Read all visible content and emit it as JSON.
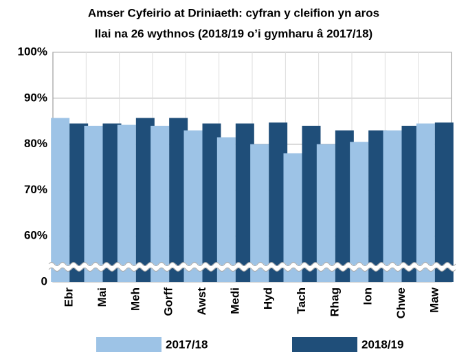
{
  "chart_data": {
    "type": "bar",
    "title": [
      "Amser Cyfeirio at Driniaeth: cyfran y cleifion yn aros",
      "llai na 26 wythnos (2018/19 o’i gymharu â 2017/18)"
    ],
    "categories": [
      "Ebr",
      "Mai",
      "Meh",
      "Gorff",
      "Awst",
      "Medi",
      "Hyd",
      "Tach",
      "Rhag",
      "Ion",
      "Chwe",
      "Maw"
    ],
    "series": [
      {
        "name": "2017/18",
        "color": "#9dc3e6",
        "values": [
          85.7,
          84,
          84.2,
          84,
          83,
          81.5,
          80,
          78,
          80,
          80.5,
          83,
          84.5
        ]
      },
      {
        "name": "2018/19",
        "color": "#1f4e79",
        "values": [
          84.5,
          84.5,
          85.7,
          85.7,
          84.5,
          84.5,
          84.7,
          84,
          83,
          83,
          84,
          84.7
        ]
      }
    ],
    "ylim": [
      0,
      100
    ],
    "yticks": [
      0,
      {
        "value": 60,
        "label": "60%"
      },
      {
        "value": 70,
        "label": "70%"
      },
      {
        "value": 80,
        "label": "80%"
      },
      {
        "value": 90,
        "label": "90%"
      },
      {
        "value": 100,
        "label": "100%"
      }
    ],
    "grid": true
  }
}
